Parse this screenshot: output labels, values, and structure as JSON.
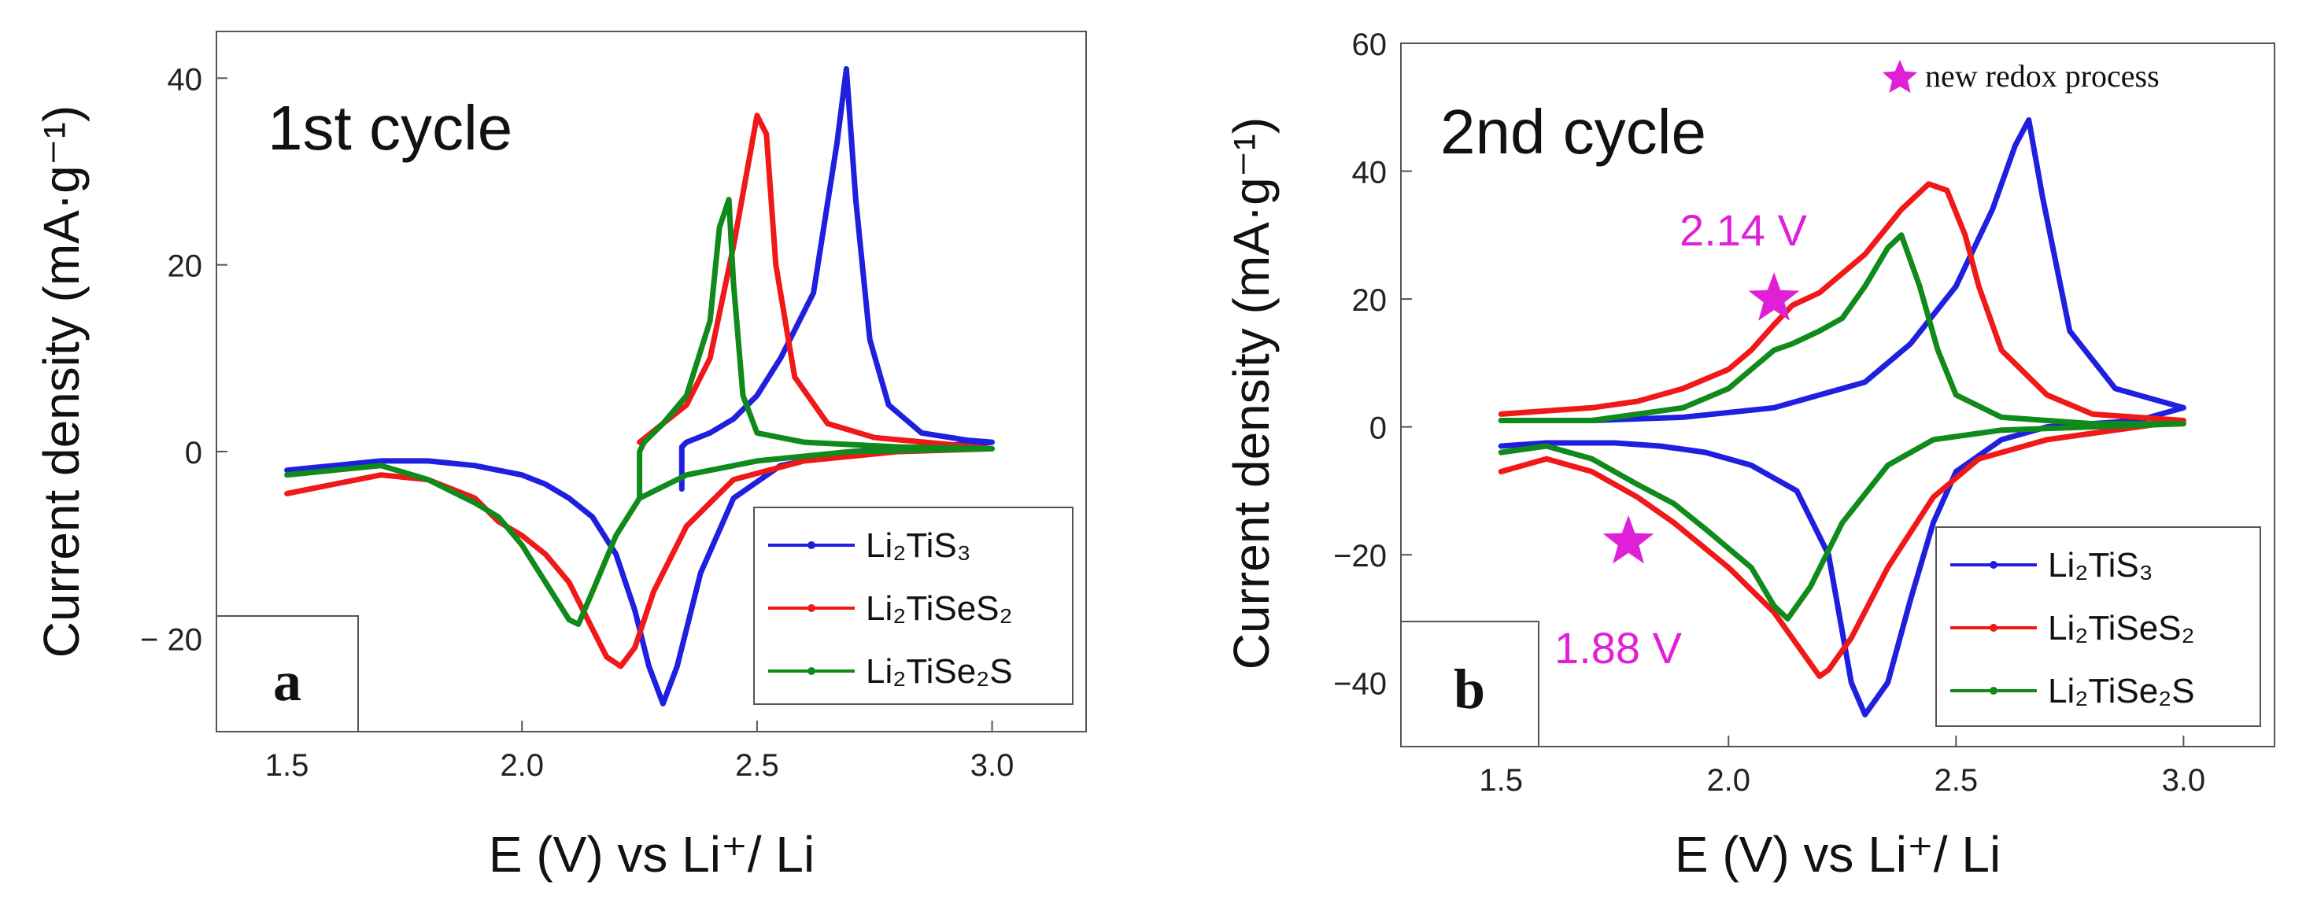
{
  "figure": {
    "panels": [
      {
        "panel_label": "a",
        "cycle_label": "1st cycle",
        "xlabel": "E (V) vs Li⁺/ Li",
        "ylabel": "Current density (mA·g⁻¹)",
        "xlim": [
          1.35,
          3.2
        ],
        "ylim": [
          -30,
          45
        ],
        "xticks": [
          1.5,
          2.0,
          2.5,
          3.0
        ],
        "xtick_labels": [
          "1.5",
          "2.0",
          "2.5",
          "3.0"
        ],
        "yticks": [
          -20,
          0,
          20,
          40
        ],
        "ytick_labels": [
          "− 20",
          "0",
          "20",
          "40"
        ],
        "legend": [
          "Li₂TiS₃",
          "Li₂TiSeS₂",
          "Li₂TiSe₂S"
        ],
        "annotations": []
      },
      {
        "panel_label": "b",
        "cycle_label": "2nd cycle",
        "xlabel": "E (V) vs Li⁺/ Li",
        "ylabel": "Current density (mA·g⁻¹)",
        "xlim": [
          1.28,
          3.2
        ],
        "ylim": [
          -50,
          60
        ],
        "xticks": [
          1.5,
          2.0,
          2.5,
          3.0
        ],
        "xtick_labels": [
          "1.5",
          "2.0",
          "2.5",
          "3.0"
        ],
        "yticks": [
          -40,
          -20,
          0,
          20,
          40,
          60
        ],
        "ytick_labels": [
          "−40",
          "−20",
          "0",
          "20",
          "40",
          "60"
        ],
        "legend": [
          "Li₂TiS₃",
          "Li₂TiSeS₂",
          "Li₂TiSe₂S"
        ],
        "star_legend": "new redox process",
        "annotations": [
          {
            "text": "2.14 V",
            "x": 2.1,
            "y": 20
          },
          {
            "text": "1.88 V",
            "x": 1.78,
            "y": -18
          }
        ]
      }
    ]
  },
  "colors": {
    "Li2TiS3": "#1f1fe0",
    "Li2TiSeS2": "#f01818",
    "Li2TiSe2S": "#108a1a",
    "annotation": "#e020d8",
    "axis": "#555555"
  },
  "chart_data": [
    {
      "type": "line",
      "title": "1st cycle",
      "xlabel": "E (V) vs Li⁺/ Li",
      "ylabel": "Current density (mA·g⁻¹)",
      "xlim": [
        1.35,
        3.2
      ],
      "ylim": [
        -30,
        45
      ],
      "grid": false,
      "legend_position": "bottom-right",
      "series": [
        {
          "name": "Li₂TiS₃",
          "x": [
            1.5,
            1.6,
            1.7,
            1.8,
            1.9,
            2.0,
            2.05,
            2.1,
            2.15,
            2.2,
            2.24,
            2.27,
            2.3,
            2.33,
            2.38,
            2.45,
            2.55,
            2.7,
            2.85,
            3.0,
            2.95,
            2.85,
            2.78,
            2.74,
            2.71,
            2.69,
            2.67,
            2.62,
            2.55,
            2.5,
            2.45,
            2.4,
            2.35,
            2.34,
            2.34
          ],
          "y": [
            -2,
            -1.5,
            -1,
            -1,
            -1.5,
            -2.5,
            -3.5,
            -5,
            -7,
            -11,
            -17,
            -23,
            -27,
            -23,
            -13,
            -5,
            -1.5,
            0,
            0.5,
            1,
            1.2,
            2,
            5,
            12,
            27,
            41,
            33,
            17,
            10,
            6,
            3.5,
            2,
            1,
            0.5,
            -4
          ]
        },
        {
          "name": "Li₂TiSeS₂",
          "x": [
            1.5,
            1.6,
            1.7,
            1.8,
            1.9,
            1.95,
            2.0,
            2.05,
            2.1,
            2.15,
            2.18,
            2.21,
            2.24,
            2.28,
            2.35,
            2.45,
            2.6,
            2.8,
            3.0,
            2.9,
            2.75,
            2.65,
            2.58,
            2.54,
            2.52,
            2.5,
            2.45,
            2.4,
            2.35,
            2.3,
            2.25
          ],
          "y": [
            -4.5,
            -3.5,
            -2.5,
            -3,
            -5,
            -7.5,
            -9,
            -11,
            -14,
            -19,
            -22,
            -23,
            -21,
            -15,
            -8,
            -3,
            -1,
            0,
            0.3,
            0.8,
            1.5,
            3,
            8,
            20,
            34,
            36,
            22,
            10,
            5,
            3,
            1
          ]
        },
        {
          "name": "Li₂TiSe₂S",
          "x": [
            1.5,
            1.6,
            1.7,
            1.8,
            1.9,
            1.95,
            2.0,
            2.05,
            2.1,
            2.12,
            2.15,
            2.2,
            2.25,
            2.35,
            2.5,
            2.7,
            3.0,
            2.8,
            2.6,
            2.5,
            2.47,
            2.45,
            2.44,
            2.42,
            2.4,
            2.35,
            2.3,
            2.26,
            2.25,
            2.25
          ],
          "y": [
            -2.5,
            -2,
            -1.5,
            -3,
            -5.5,
            -7,
            -10,
            -14,
            -18,
            -18.5,
            -15,
            -9,
            -5,
            -2.5,
            -1,
            0,
            0.3,
            0.5,
            1,
            2,
            6,
            18,
            27,
            24,
            14,
            6,
            3,
            1,
            0,
            -5
          ]
        }
      ]
    },
    {
      "type": "line",
      "title": "2nd cycle",
      "xlabel": "E (V) vs Li⁺/ Li",
      "ylabel": "Current density (mA·g⁻¹)",
      "xlim": [
        1.28,
        3.2
      ],
      "ylim": [
        -50,
        60
      ],
      "grid": false,
      "legend_position": "bottom-right",
      "series": [
        {
          "name": "Li₂TiS₃",
          "x": [
            1.5,
            1.7,
            1.9,
            2.1,
            2.3,
            2.4,
            2.5,
            2.58,
            2.63,
            2.66,
            2.69,
            2.75,
            2.85,
            3.0,
            2.9,
            2.7,
            2.6,
            2.5,
            2.45,
            2.4,
            2.35,
            2.3,
            2.27,
            2.22,
            2.15,
            2.05,
            1.95,
            1.85,
            1.75,
            1.6,
            1.5
          ],
          "y": [
            1,
            1,
            1.5,
            3,
            7,
            13,
            22,
            34,
            44,
            48,
            36,
            15,
            6,
            3,
            1,
            0,
            -2,
            -7,
            -15,
            -27,
            -40,
            -45,
            -40,
            -20,
            -10,
            -6,
            -4,
            -3,
            -2.5,
            -2.5,
            -3
          ]
        },
        {
          "name": "Li₂TiSeS₂",
          "x": [
            1.5,
            1.6,
            1.7,
            1.8,
            1.9,
            2.0,
            2.05,
            2.1,
            2.14,
            2.2,
            2.3,
            2.38,
            2.44,
            2.48,
            2.52,
            2.55,
            2.6,
            2.7,
            2.8,
            3.0,
            2.9,
            2.7,
            2.55,
            2.45,
            2.35,
            2.27,
            2.22,
            2.2,
            2.17,
            2.1,
            2.0,
            1.88,
            1.8,
            1.7,
            1.6,
            1.5
          ],
          "y": [
            2,
            2.5,
            3,
            4,
            6,
            9,
            12,
            16,
            19,
            21,
            27,
            34,
            38,
            37,
            30,
            22,
            12,
            5,
            2,
            1,
            0,
            -2,
            -5,
            -11,
            -22,
            -33,
            -38,
            -39,
            -36,
            -29,
            -22,
            -15,
            -11,
            -7,
            -5,
            -7
          ]
        },
        {
          "name": "Li₂TiSe₂S",
          "x": [
            1.5,
            1.7,
            1.9,
            2.0,
            2.05,
            2.1,
            2.14,
            2.2,
            2.25,
            2.3,
            2.35,
            2.38,
            2.42,
            2.46,
            2.5,
            2.6,
            2.8,
            3.0,
            2.8,
            2.6,
            2.45,
            2.35,
            2.25,
            2.18,
            2.13,
            2.1,
            2.05,
            1.95,
            1.88,
            1.8,
            1.7,
            1.6,
            1.5
          ],
          "y": [
            1,
            1,
            3,
            6,
            9,
            12,
            13,
            15,
            17,
            22,
            28,
            30,
            22,
            12,
            5,
            1.5,
            0.5,
            0.5,
            0,
            -0.5,
            -2,
            -6,
            -15,
            -25,
            -30,
            -28,
            -22,
            -16,
            -12,
            -9,
            -5,
            -3,
            -4
          ]
        }
      ]
    }
  ]
}
